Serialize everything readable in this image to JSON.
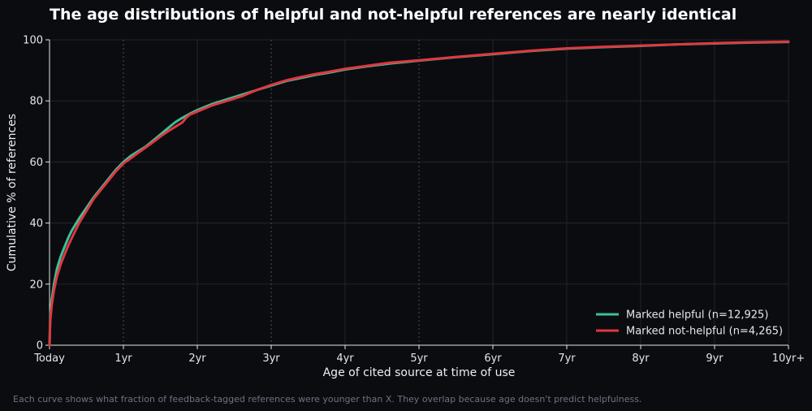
{
  "chart_data": {
    "type": "line",
    "title": "The age distributions of helpful and not-helpful references are nearly identical",
    "xlabel": "Age of cited source at time of use",
    "ylabel": "Cumulative % of references",
    "x_unit": "years",
    "xlim": [
      0,
      10
    ],
    "ylim": [
      0,
      100
    ],
    "x_ticks": [
      {
        "value": 0,
        "label": "Today"
      },
      {
        "value": 1,
        "label": "1yr"
      },
      {
        "value": 2,
        "label": "2yr"
      },
      {
        "value": 3,
        "label": "3yr"
      },
      {
        "value": 4,
        "label": "4yr"
      },
      {
        "value": 5,
        "label": "5yr"
      },
      {
        "value": 6,
        "label": "6yr"
      },
      {
        "value": 7,
        "label": "7yr"
      },
      {
        "value": 8,
        "label": "8yr"
      },
      {
        "value": 9,
        "label": "9yr"
      },
      {
        "value": 10,
        "label": "10yr+"
      }
    ],
    "y_ticks": [
      0,
      20,
      40,
      60,
      80,
      100
    ],
    "grid": true,
    "dashed_vertical_lines_at": [
      1,
      3,
      5
    ],
    "legend_position": "bottom-right",
    "series": [
      {
        "name": "Marked helpful (n=12,925)",
        "color": "#3fbf9a",
        "points": [
          [
            0,
            0
          ],
          [
            0.01,
            10
          ],
          [
            0.03,
            15
          ],
          [
            0.06,
            20
          ],
          [
            0.1,
            25
          ],
          [
            0.15,
            29
          ],
          [
            0.2,
            32
          ],
          [
            0.25,
            35
          ],
          [
            0.3,
            37.5
          ],
          [
            0.4,
            41.5
          ],
          [
            0.5,
            45
          ],
          [
            0.6,
            48.5
          ],
          [
            0.7,
            51.5
          ],
          [
            0.8,
            54.5
          ],
          [
            0.9,
            57.5
          ],
          [
            1,
            60
          ],
          [
            1.1,
            62
          ],
          [
            1.2,
            63.5
          ],
          [
            1.3,
            65
          ],
          [
            1.4,
            67
          ],
          [
            1.5,
            69
          ],
          [
            1.6,
            71
          ],
          [
            1.7,
            73
          ],
          [
            1.8,
            74.5
          ],
          [
            1.9,
            75.8
          ],
          [
            2,
            77
          ],
          [
            2.2,
            79
          ],
          [
            2.4,
            80.5
          ],
          [
            2.6,
            82
          ],
          [
            2.8,
            83.5
          ],
          [
            3,
            85
          ],
          [
            3.2,
            86.5
          ],
          [
            3.4,
            87.5
          ],
          [
            3.6,
            88.5
          ],
          [
            3.8,
            89.3
          ],
          [
            4,
            90.3
          ],
          [
            4.3,
            91.3
          ],
          [
            4.6,
            92.2
          ],
          [
            5,
            93.2
          ],
          [
            5.5,
            94.3
          ],
          [
            6,
            95.3
          ],
          [
            6.5,
            96.3
          ],
          [
            7,
            97.1
          ],
          [
            7.5,
            97.6
          ],
          [
            8,
            98
          ],
          [
            8.5,
            98.5
          ],
          [
            9,
            98.8
          ],
          [
            9.5,
            99.1
          ],
          [
            10,
            99.3
          ]
        ]
      },
      {
        "name": "Marked not-helpful (n=4,265)",
        "color": "#e0383f",
        "points": [
          [
            0,
            0
          ],
          [
            0.01,
            8
          ],
          [
            0.03,
            13
          ],
          [
            0.06,
            18
          ],
          [
            0.1,
            22.5
          ],
          [
            0.15,
            26.5
          ],
          [
            0.2,
            29.5
          ],
          [
            0.25,
            32.5
          ],
          [
            0.3,
            35
          ],
          [
            0.4,
            40
          ],
          [
            0.5,
            44
          ],
          [
            0.6,
            48
          ],
          [
            0.7,
            51
          ],
          [
            0.8,
            54
          ],
          [
            0.9,
            57
          ],
          [
            1,
            59.5
          ],
          [
            1.1,
            61.2
          ],
          [
            1.2,
            63
          ],
          [
            1.3,
            64.7
          ],
          [
            1.4,
            66.5
          ],
          [
            1.5,
            68.3
          ],
          [
            1.6,
            70
          ],
          [
            1.7,
            71.5
          ],
          [
            1.8,
            73
          ],
          [
            1.85,
            74.5
          ],
          [
            1.9,
            75.5
          ],
          [
            2,
            76.5
          ],
          [
            2.2,
            78.5
          ],
          [
            2.4,
            80
          ],
          [
            2.6,
            81.5
          ],
          [
            2.8,
            83.5
          ],
          [
            3,
            85.2
          ],
          [
            3.2,
            86.7
          ],
          [
            3.4,
            87.8
          ],
          [
            3.6,
            88.8
          ],
          [
            3.8,
            89.6
          ],
          [
            4,
            90.5
          ],
          [
            4.3,
            91.5
          ],
          [
            4.6,
            92.5
          ],
          [
            5,
            93.3
          ],
          [
            5.5,
            94.4
          ],
          [
            6,
            95.4
          ],
          [
            6.5,
            96.4
          ],
          [
            7,
            97.2
          ],
          [
            7.5,
            97.7
          ],
          [
            8,
            98.1
          ],
          [
            8.5,
            98.5
          ],
          [
            9,
            98.9
          ],
          [
            9.5,
            99.2
          ],
          [
            10,
            99.4
          ]
        ]
      }
    ]
  },
  "caption": "Each curve shows what fraction of feedback-tagged references were younger than X. They overlap because age doesn't predict helpfulness."
}
